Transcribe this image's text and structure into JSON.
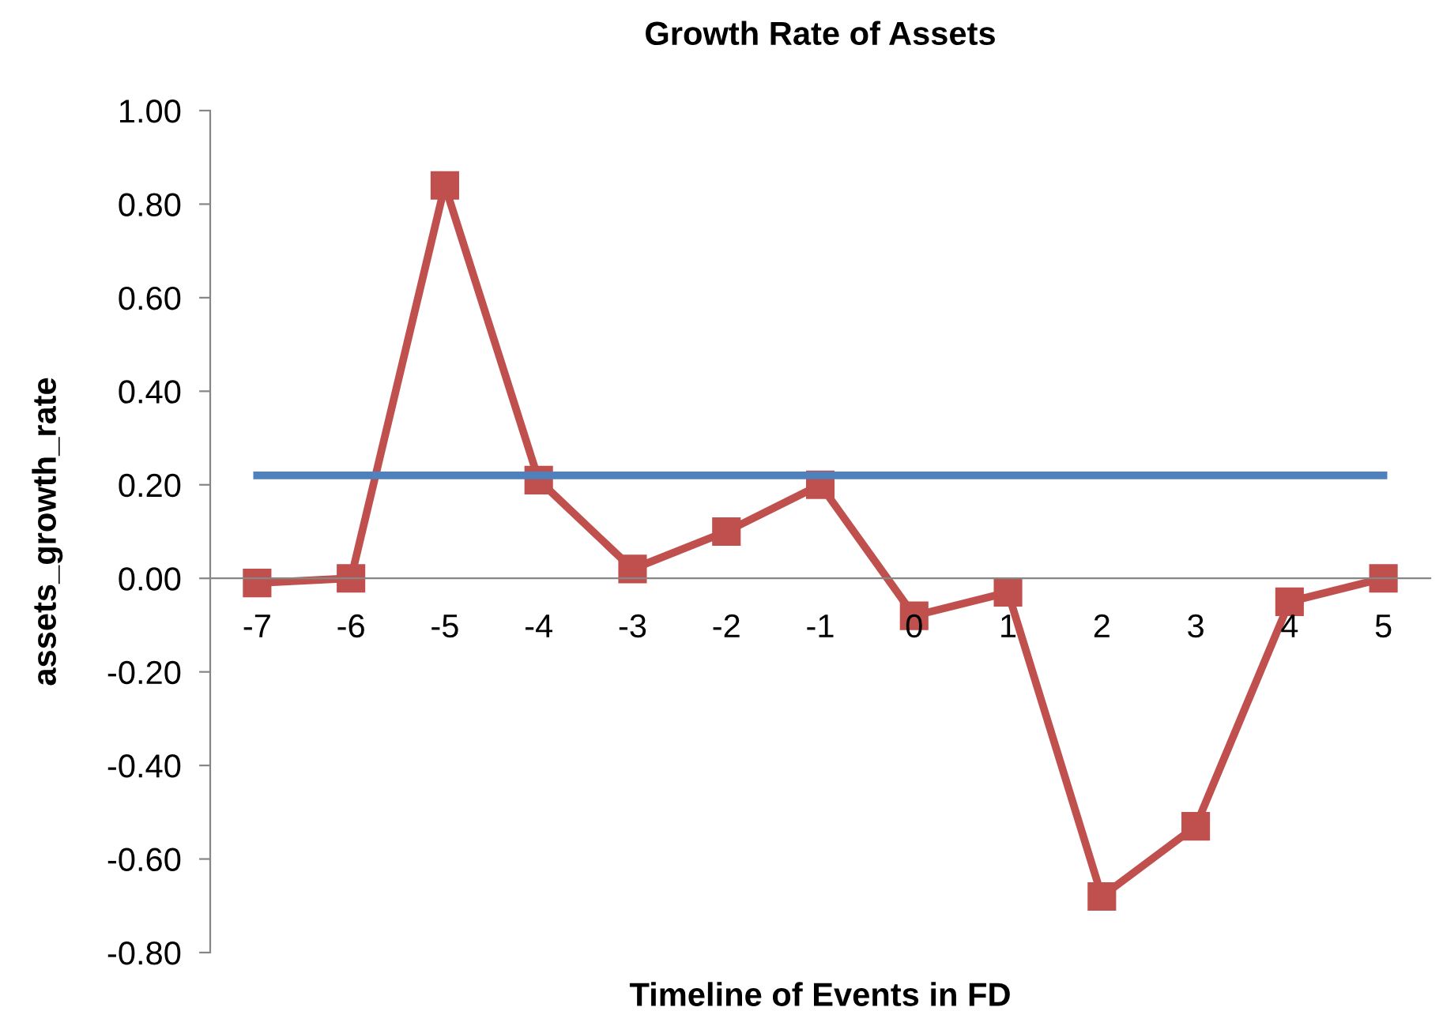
{
  "chart_data": {
    "type": "line",
    "title": "Growth Rate of Assets",
    "xlabel": "Timeline of Events in FD",
    "ylabel": "assets_growth_rate",
    "categories": [
      "-7",
      "-6",
      "-5",
      "-4",
      "-3",
      "-2",
      "-1",
      "0",
      "1",
      "2",
      "3",
      "4",
      "5"
    ],
    "series": [
      {
        "color": "#c0504d",
        "marker": "square",
        "values": [
          -0.01,
          0.0,
          0.84,
          0.21,
          0.02,
          0.1,
          0.2,
          -0.08,
          -0.03,
          -0.68,
          -0.53,
          -0.05,
          0.0
        ]
      },
      {
        "color": "#4f81bd",
        "marker": "none",
        "values": [
          0.22,
          0.22,
          0.22,
          0.22,
          0.22,
          0.22,
          0.22,
          0.22,
          0.22,
          0.22,
          0.22,
          0.22,
          0.22
        ]
      }
    ],
    "ylim": [
      -0.8,
      1.0
    ],
    "yticks": [
      {
        "value": -0.8,
        "label": "-0.80"
      },
      {
        "value": -0.6,
        "label": "-0.60"
      },
      {
        "value": -0.4,
        "label": "-0.40"
      },
      {
        "value": -0.2,
        "label": "-0.20"
      },
      {
        "value": 0,
        "label": "0.00"
      },
      {
        "value": 0.2,
        "label": "0.20"
      },
      {
        "value": 0.4,
        "label": "0.40"
      },
      {
        "value": 0.6,
        "label": "0.60"
      },
      {
        "value": 0.8,
        "label": "0.80"
      },
      {
        "value": 1.0,
        "label": "1.00"
      }
    ],
    "grid": false,
    "legend": false
  }
}
